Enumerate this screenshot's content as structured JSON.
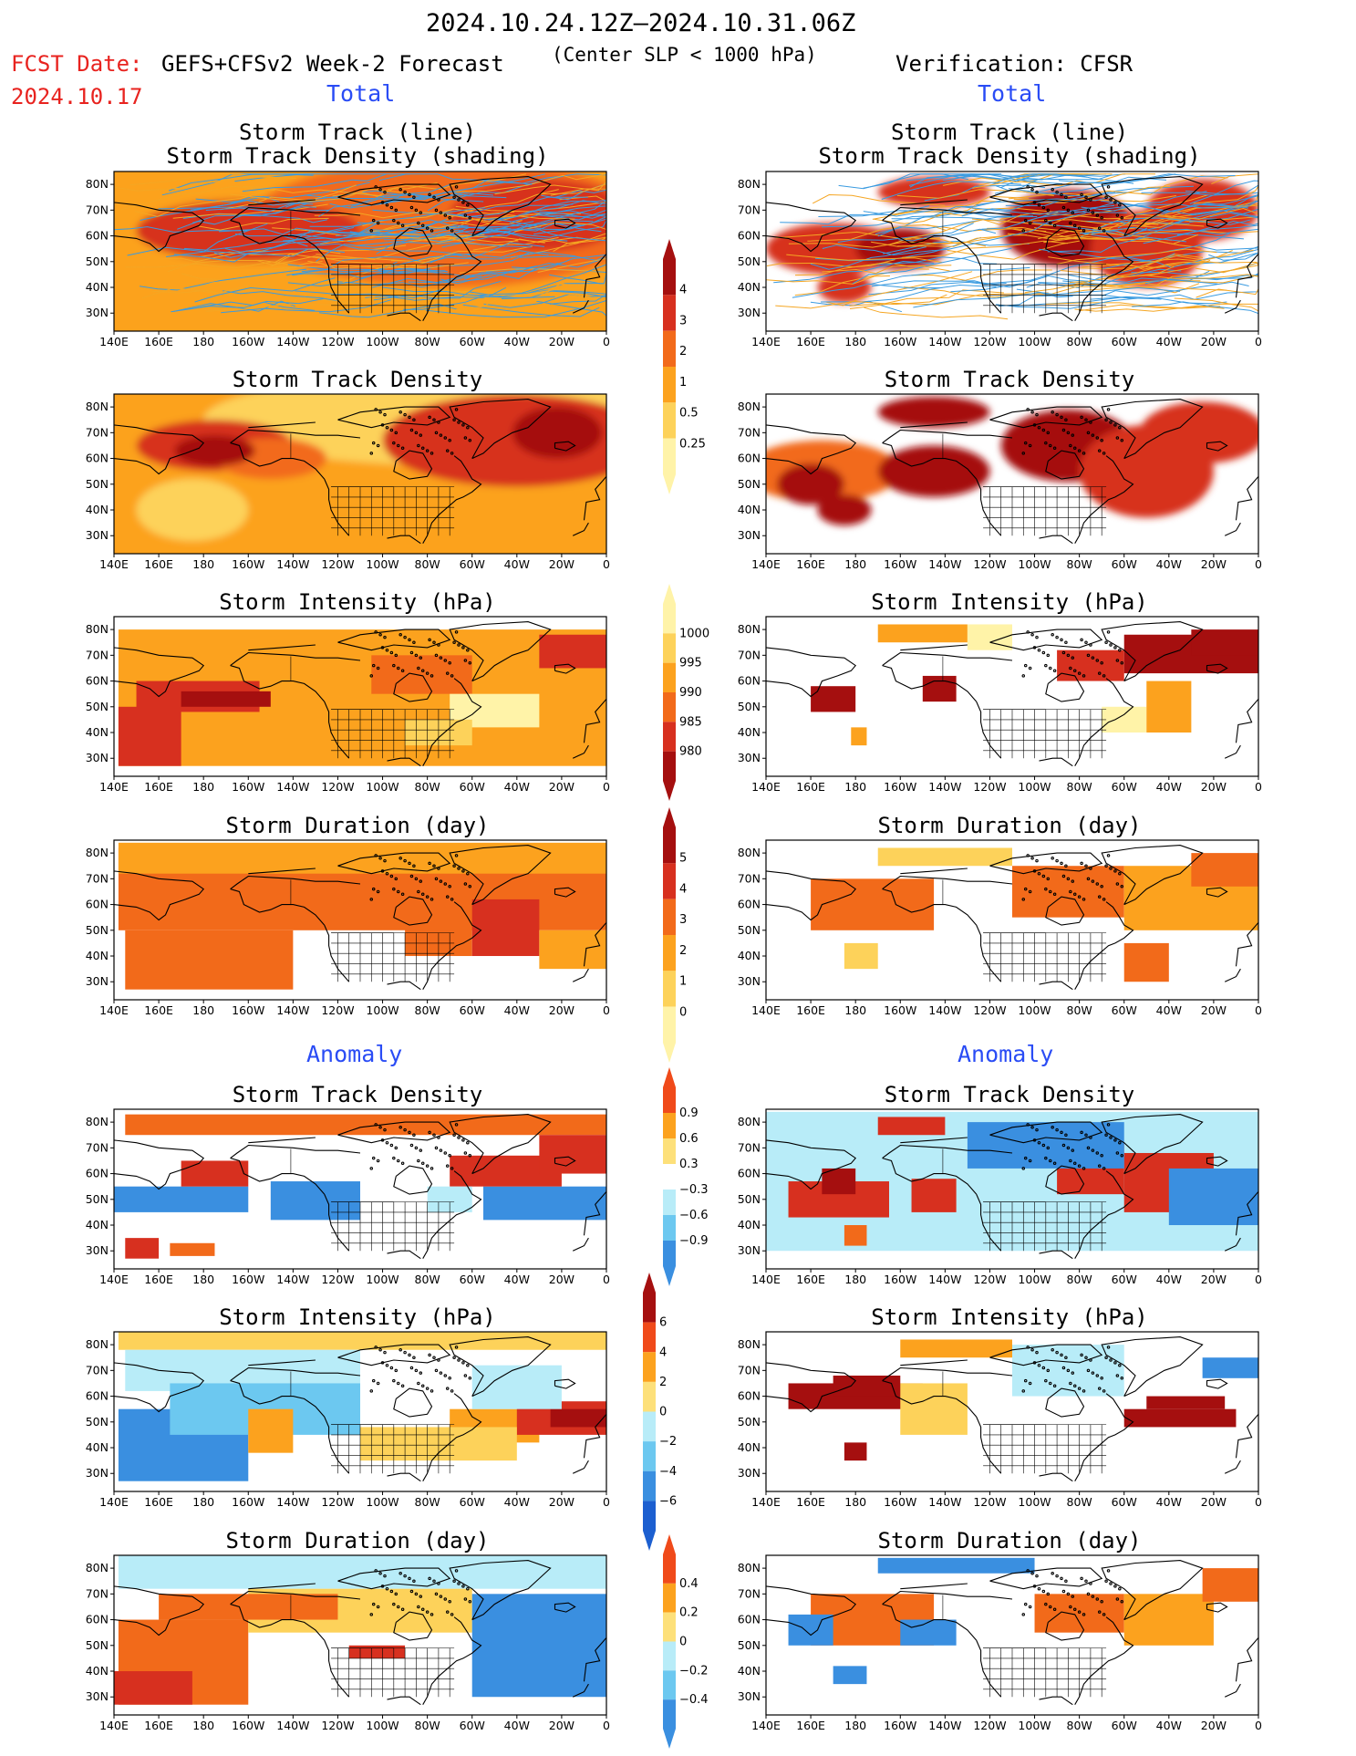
{
  "header": {
    "date_range": "2024.10.24.12Z–2024.10.31.06Z",
    "fcst_label": "FCST Date:",
    "fcst_date": "2024.10.17",
    "model": "GEFS+CFSv2 Week-2 Forecast",
    "criterion": "(Center SLP < 1000 hPa)",
    "verification": "Verification: CFSR"
  },
  "sections": {
    "total_left": "Total",
    "total_right": "Total",
    "anomaly_left": "Anomaly",
    "anomaly_right": "Anomaly"
  },
  "panel_titles": {
    "track_line": "Storm Track (line)",
    "track_shading": "Storm Track Density (shading)",
    "density": "Storm Track Density",
    "intensity": "Storm Intensity (hPa)",
    "duration": "Storm Duration (day)"
  },
  "axes": {
    "x_ticks": [
      "140E",
      "160E",
      "180",
      "160W",
      "140W",
      "120W",
      "100W",
      "80W",
      "60W",
      "40W",
      "20W",
      "0"
    ],
    "y_ticks": [
      "80N",
      "70N",
      "60N",
      "50N",
      "40N",
      "30N"
    ]
  },
  "colorbars": {
    "density_total": {
      "labels": [
        "4",
        "3",
        "2",
        "1",
        "0.5",
        "0.25"
      ],
      "colors": [
        "#a50f0f",
        "#d7301f",
        "#f26a1a",
        "#fca21e",
        "#fdd25a",
        "#fff3a8"
      ]
    },
    "intensity_total": {
      "labels": [
        "1000",
        "995",
        "990",
        "985",
        "980"
      ],
      "colors": [
        "#fff3a8",
        "#fdd25a",
        "#fca21e",
        "#f26a1a",
        "#d7301f",
        "#a50f0f"
      ]
    },
    "duration_total": {
      "labels": [
        "5",
        "4",
        "3",
        "2",
        "1",
        "0"
      ],
      "colors": [
        "#a50f0f",
        "#d7301f",
        "#f26a1a",
        "#fca21e",
        "#fdd25a",
        "#fff3a8"
      ]
    },
    "density_anom": {
      "labels": [
        "0.9",
        "0.6",
        "0.3",
        "−0.3",
        "−0.6",
        "−0.9"
      ],
      "colors": [
        "#f04a1a",
        "#fca21e",
        "#fde07a",
        "#ffffff",
        "#b8ecf8",
        "#6cc8f0",
        "#3a8fe0"
      ]
    },
    "intensity_anom": {
      "labels": [
        "6",
        "4",
        "2",
        "0",
        "−2",
        "−4",
        "−6"
      ],
      "colors": [
        "#a50f0f",
        "#f04a1a",
        "#fca21e",
        "#fde07a",
        "#b8ecf8",
        "#6cc8f0",
        "#3a8fe0",
        "#1c5fd0"
      ]
    },
    "duration_anom": {
      "labels": [
        "0.4",
        "0.2",
        "0",
        "−0.2",
        "−0.4"
      ],
      "colors": [
        "#f04a1a",
        "#fca21e",
        "#fde07a",
        "#b8ecf8",
        "#6cc8f0",
        "#3a8fe0"
      ]
    }
  },
  "palette": {
    "deep_red": "#a50f0f",
    "red": "#d7301f",
    "orange_red": "#f26a1a",
    "orange": "#fca21e",
    "light_orange": "#fdd25a",
    "pale_yellow": "#fff3a8",
    "light_blue": "#b8ecf8",
    "mid_blue": "#6cc8f0",
    "blue": "#3a8fe0",
    "track_blue": "#3a9be0",
    "track_orange": "#f5a623"
  }
}
